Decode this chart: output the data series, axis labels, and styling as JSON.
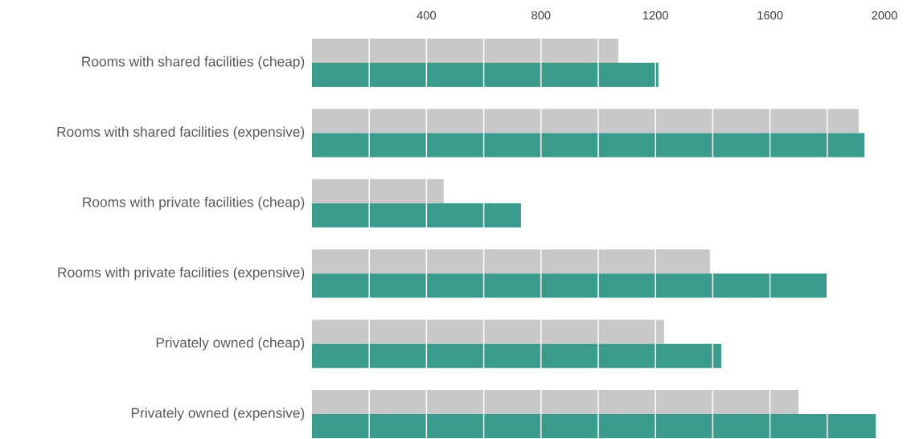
{
  "chart_data": {
    "type": "bar",
    "orientation": "horizontal",
    "categories": [
      "Rooms with shared facilities (cheap)",
      "Rooms with shared facilities (expensive)",
      "Rooms with private facilities (cheap)",
      "Rooms with private facilities (expensive)",
      "Privately owned (cheap)",
      "Privately owned (expensive)"
    ],
    "series": [
      {
        "color": "#c8c8c8",
        "values": [
          1070,
          1910,
          460,
          1390,
          1230,
          1700
        ]
      },
      {
        "color": "#3a9a8c",
        "values": [
          1210,
          1930,
          730,
          1800,
          1430,
          1970
        ]
      }
    ],
    "xlim": [
      0,
      2000
    ],
    "xticks": [
      {
        "value": 200,
        "label": null
      },
      400,
      {
        "value": 600,
        "label": null
      },
      800,
      {
        "value": 1000,
        "label": null
      },
      1200,
      {
        "value": 1400,
        "label": null
      },
      1600,
      {
        "value": 1800,
        "label": null
      },
      2000
    ],
    "grid": "x"
  }
}
